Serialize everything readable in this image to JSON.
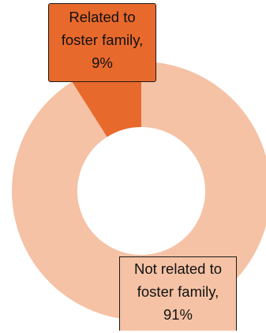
{
  "chart_data": {
    "type": "pie",
    "title": "",
    "slices": [
      {
        "name": "Related to foster family",
        "value": 9,
        "label_lines": [
          "Related to",
          "foster family,",
          "9%"
        ],
        "color": "#e8692c"
      },
      {
        "name": "Not related to foster family",
        "value": 91,
        "label_lines": [
          "Not related to",
          "foster family,",
          "91%"
        ],
        "color": "#f5c2a5"
      }
    ],
    "hole": "donut",
    "legend": "none"
  }
}
